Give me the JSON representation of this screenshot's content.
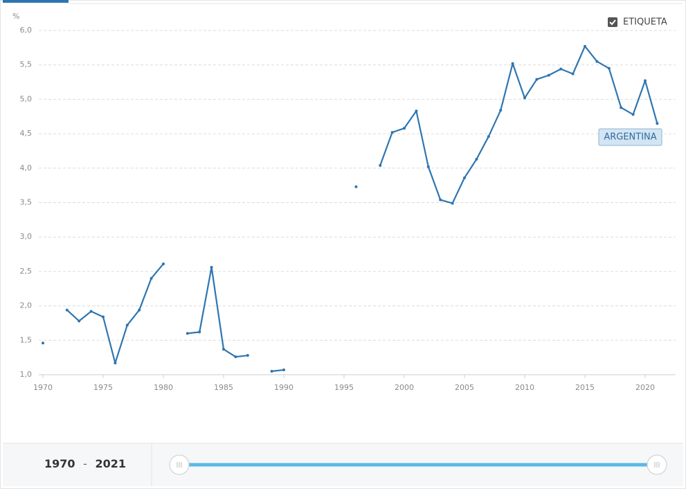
{
  "chart_data": {
    "type": "line",
    "y_label": "%",
    "x": [
      1970,
      1971,
      1972,
      1973,
      1974,
      1975,
      1976,
      1977,
      1978,
      1979,
      1980,
      1981,
      1982,
      1983,
      1984,
      1985,
      1986,
      1987,
      1988,
      1989,
      1990,
      1991,
      1992,
      1993,
      1994,
      1995,
      1996,
      1997,
      1998,
      1999,
      2000,
      2001,
      2002,
      2003,
      2004,
      2005,
      2006,
      2007,
      2008,
      2009,
      2010,
      2011,
      2012,
      2013,
      2014,
      2015,
      2016,
      2017,
      2018,
      2019,
      2020,
      2021
    ],
    "series": [
      {
        "name": "ARGENTINA",
        "color": "#2e75b0",
        "values": [
          1.46,
          null,
          1.94,
          1.78,
          1.92,
          1.84,
          1.17,
          1.72,
          1.94,
          2.4,
          2.61,
          null,
          1.6,
          1.62,
          2.56,
          1.37,
          1.26,
          1.28,
          null,
          1.05,
          1.07,
          null,
          null,
          null,
          null,
          null,
          3.73,
          null,
          4.04,
          4.52,
          4.58,
          4.83,
          4.02,
          3.54,
          3.49,
          3.86,
          4.13,
          4.46,
          4.84,
          5.52,
          5.02,
          5.29,
          5.35,
          5.44,
          5.37,
          5.77,
          5.55,
          5.45,
          4.88,
          4.78,
          5.27,
          4.65
        ]
      }
    ],
    "xlim": [
      1970,
      2022.5
    ],
    "ylim": [
      1,
      6
    ],
    "xticks": [
      1970,
      1975,
      1980,
      1985,
      1990,
      1995,
      2000,
      2005,
      2010,
      2015,
      2020
    ],
    "yticks": [
      {
        "value": 1,
        "label": "1,0"
      },
      {
        "value": 1.5,
        "label": "1,5"
      },
      {
        "value": 2,
        "label": "2,0"
      },
      {
        "value": 2.5,
        "label": "2,5"
      },
      {
        "value": 3,
        "label": "3,0"
      },
      {
        "value": 3.5,
        "label": "3,5"
      },
      {
        "value": 4,
        "label": "4,0"
      },
      {
        "value": 4.5,
        "label": "4,5"
      },
      {
        "value": 5,
        "label": "5,0"
      },
      {
        "value": 5.5,
        "label": "5,5"
      },
      {
        "value": 6,
        "label": "6,0"
      }
    ],
    "grid": true
  },
  "ui": {
    "toggle": "ETIQUETA",
    "range_start": 1970,
    "range_separator": "-",
    "range_end": 2021
  }
}
